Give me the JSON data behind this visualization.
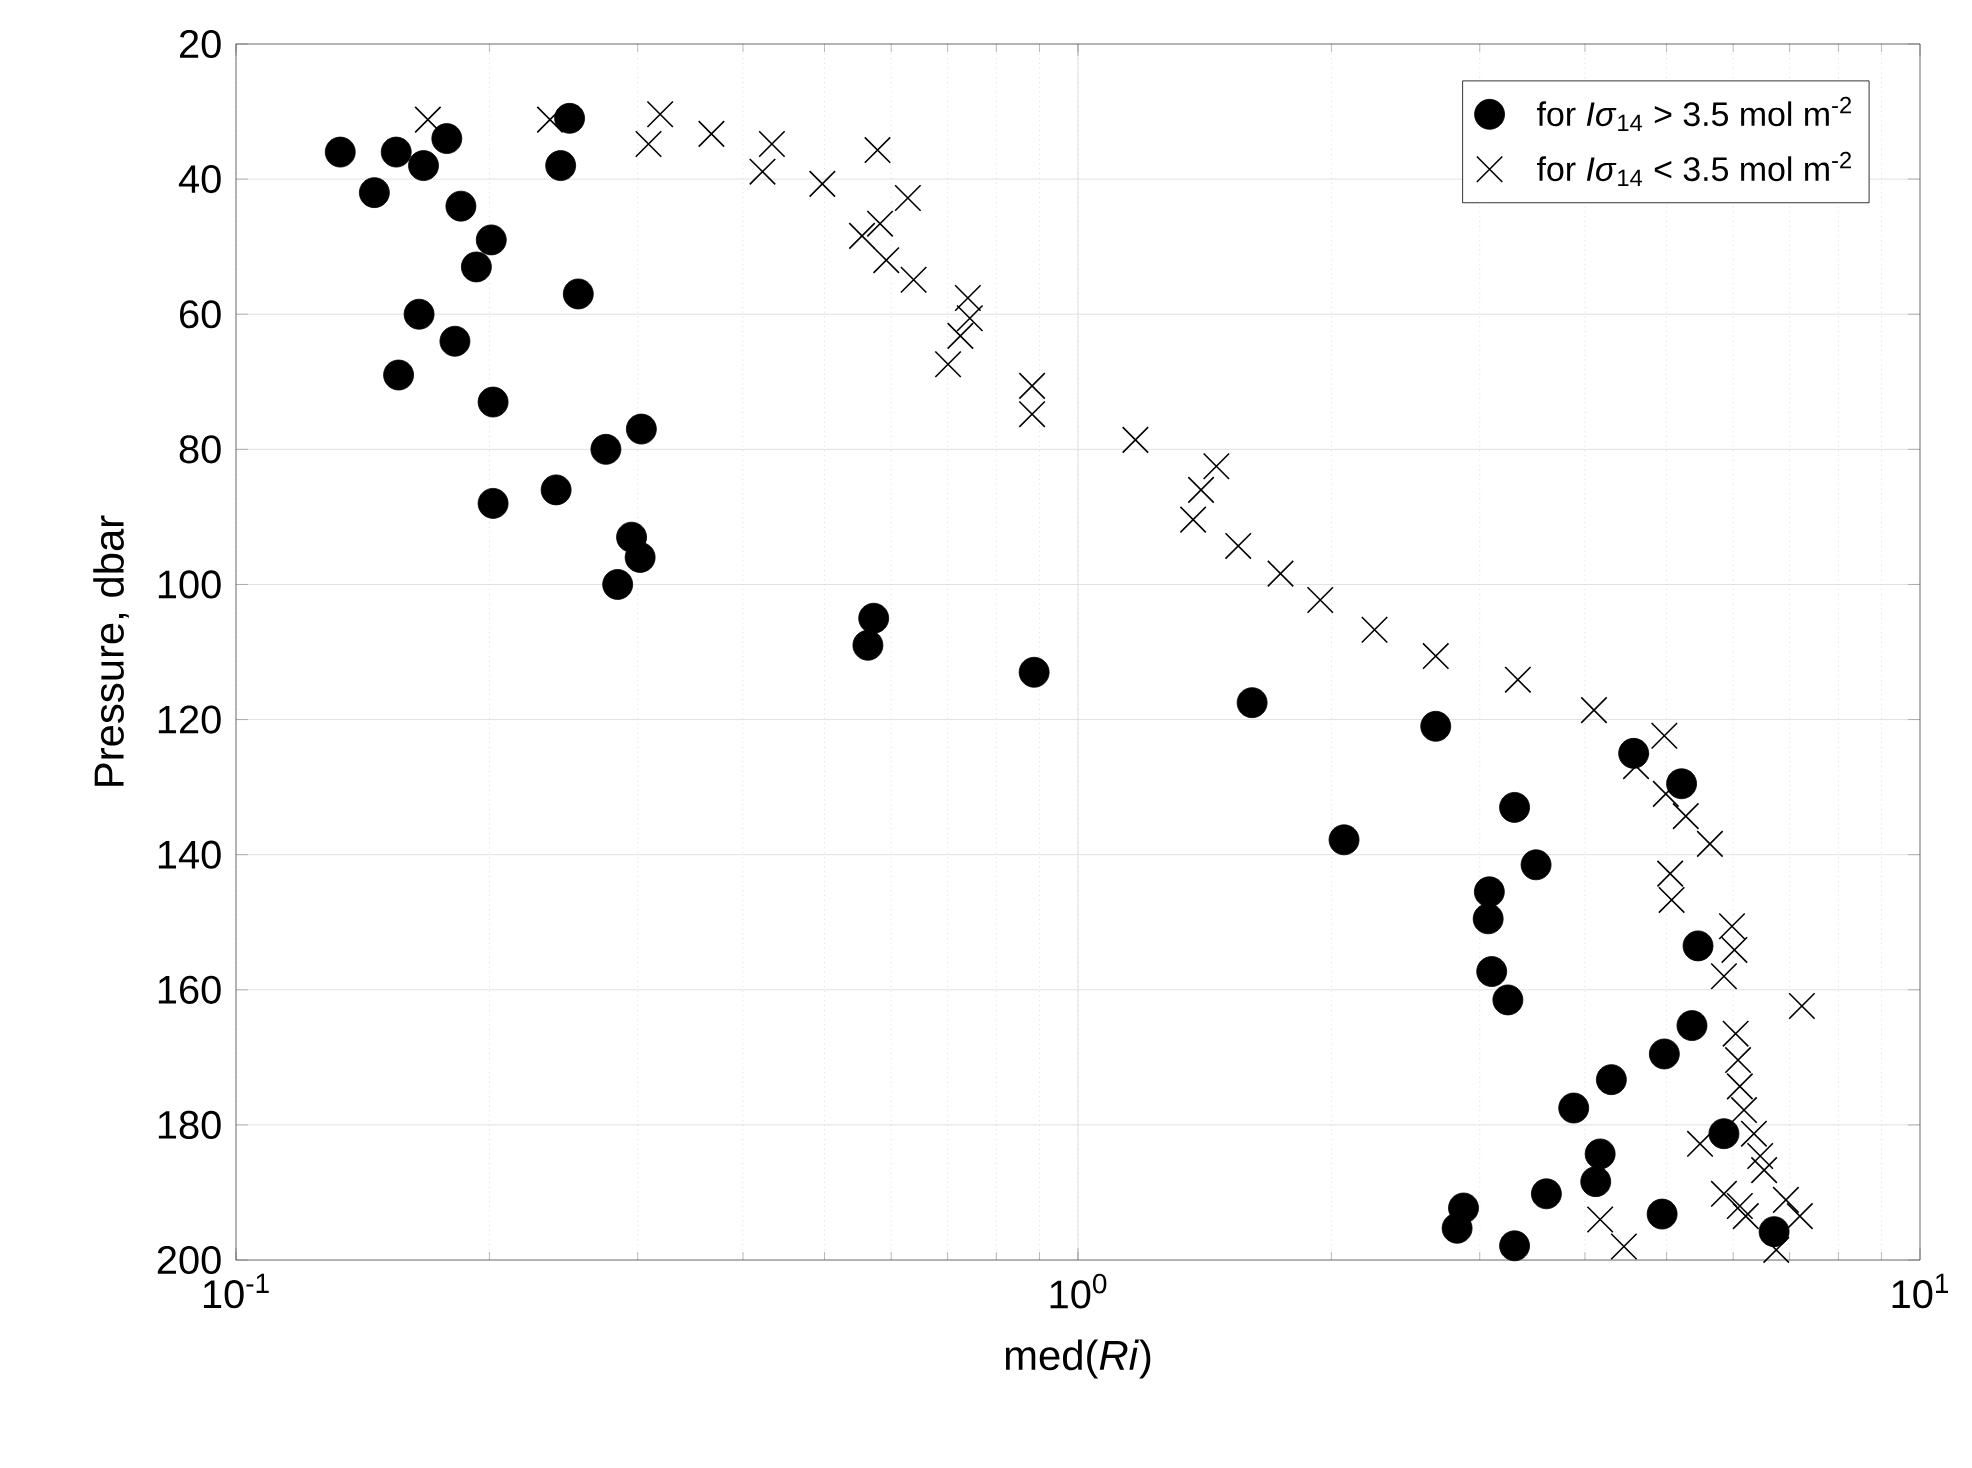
{
  "chart_data": {
    "type": "scatter",
    "xlabel": "med(*Ri*)",
    "ylabel": "Pressure, dbar",
    "log": "x",
    "grid": true,
    "legend": "top right",
    "xlim": [
      0.1,
      10
    ],
    "ylim": [
      200,
      20
    ],
    "xticks": [
      {
        "value": 0.1,
        "label": "10$^{-1}$"
      },
      {
        "value": 1,
        "label": "10$^{0}$"
      },
      {
        "value": 10,
        "label": "10$^{1}$"
      }
    ],
    "yticks": [
      20,
      40,
      60,
      80,
      100,
      120,
      140,
      160,
      180,
      200
    ],
    "series": [
      {
        "name": "for *Iσ*$_{14}$ > 3.5 mol m$^{-2}$",
        "color": "#000000",
        "marker": "circle",
        "x": [
          0.133,
          0.146,
          0.155,
          0.167,
          0.178,
          0.185,
          0.201,
          0.193,
          0.165,
          0.156,
          0.249,
          0.243,
          0.255,
          0.182,
          0.202,
          0.303,
          0.275,
          0.24,
          0.202,
          0.295,
          0.302,
          0.284,
          0.572,
          0.563,
          0.887,
          1.61,
          2.66,
          4.57,
          5.21,
          3.3,
          2.07,
          3.5,
          3.08,
          3.07,
          5.45,
          3.1,
          3.24,
          5.36,
          4.97,
          4.3,
          3.88,
          5.85,
          4.17,
          4.12,
          3.6,
          2.87,
          2.82,
          4.94,
          3.3,
          6.71
        ],
        "values": [
          36,
          42,
          36,
          38,
          34,
          44,
          49,
          53,
          60,
          69,
          31,
          38,
          57,
          64,
          73,
          77,
          80,
          86,
          88,
          93,
          96,
          100,
          105,
          109,
          113,
          117.5,
          121,
          125,
          129.5,
          133,
          137.8,
          141.5,
          145.5,
          149.5,
          153.5,
          157.3,
          161.5,
          165.3,
          169.5,
          173.3,
          177.5,
          181.3,
          184.3,
          188.4,
          190.2,
          192.3,
          195.3,
          193.2,
          197.9,
          195.8
        ]
      },
      {
        "name": "for *Iσ*$_{14}$ < 3.5 mol m$^{-2}$",
        "color": "#000000",
        "marker": "cross",
        "x": [
          0.169,
          0.236,
          0.319,
          0.309,
          0.367,
          0.433,
          0.422,
          0.497,
          0.578,
          0.628,
          0.582,
          0.554,
          0.592,
          0.638,
          0.74,
          0.744,
          0.725,
          0.701,
          0.882,
          0.882,
          1.17,
          1.46,
          1.4,
          1.37,
          1.55,
          1.74,
          1.94,
          2.25,
          2.66,
          3.33,
          4.1,
          4.97,
          4.6,
          4.99,
          5.27,
          5.63,
          5.05,
          5.07,
          5.98,
          6.02,
          5.85,
          7.24,
          6.04,
          6.08,
          6.11,
          6.18,
          5.48,
          6.35,
          6.46,
          6.53,
          5.85,
          6.11,
          6.21,
          7.2,
          6.93,
          4.17,
          4.45,
          6.75
        ],
        "values": [
          31.2,
          31.2,
          30.4,
          34.8,
          33.3,
          34.8,
          38.9,
          40.7,
          35.7,
          42.8,
          46.6,
          48.4,
          52,
          54.9,
          57.6,
          60.6,
          63.2,
          67.4,
          70.6,
          74.8,
          78.6,
          82.5,
          86,
          90.4,
          94.3,
          98.4,
          102.3,
          106.7,
          110.6,
          114.1,
          118.6,
          122.4,
          126.9,
          131,
          134.3,
          138.4,
          142.8,
          146.7,
          150.6,
          154.1,
          158,
          162.4,
          166.5,
          170.4,
          174.3,
          177.8,
          182.8,
          181.3,
          184.6,
          186.7,
          190.2,
          192,
          193.5,
          193.5,
          191.1,
          194,
          198,
          198.5
        ]
      }
    ]
  }
}
